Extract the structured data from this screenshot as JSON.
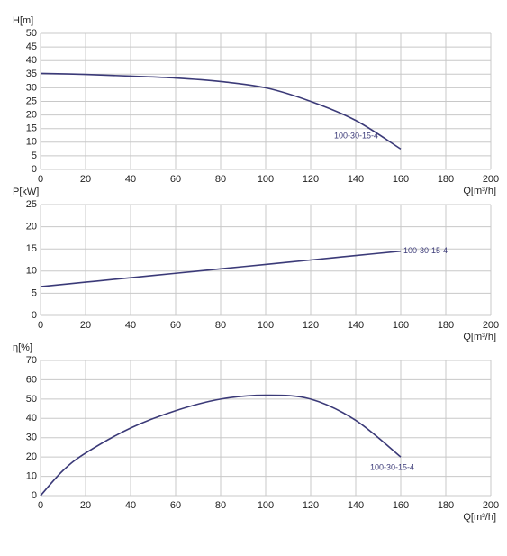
{
  "chart_data": [
    {
      "type": "line",
      "y_label": "H[m]",
      "x_label": "Q[m³/h]",
      "x": [
        0,
        20,
        40,
        60,
        80,
        100,
        120,
        140,
        160
      ],
      "series": [
        {
          "name": "100-30-15-4",
          "color": "#3b3a78",
          "values": [
            35.3,
            34.9,
            34.3,
            33.6,
            32.3,
            30,
            25,
            18,
            7.5
          ]
        }
      ],
      "xlim": [
        0,
        200
      ],
      "xticks": [
        0,
        20,
        40,
        60,
        80,
        100,
        120,
        140,
        160,
        180,
        200
      ],
      "ylim": [
        0,
        50
      ],
      "yticks": [
        0,
        5,
        10,
        15,
        20,
        25,
        30,
        35,
        40,
        45,
        50
      ],
      "grid": true
    },
    {
      "type": "line",
      "y_label": "P[kW]",
      "x_label": "Q[m³/h]",
      "x": [
        0,
        20,
        40,
        60,
        80,
        100,
        120,
        140,
        160
      ],
      "series": [
        {
          "name": "100-30-15-4",
          "color": "#3b3a78",
          "values": [
            6.5,
            7.5,
            8.5,
            9.5,
            10.5,
            11.5,
            12.5,
            13.5,
            14.5
          ]
        }
      ],
      "xlim": [
        0,
        200
      ],
      "xticks": [
        0,
        20,
        40,
        60,
        80,
        100,
        120,
        140,
        160,
        180,
        200
      ],
      "ylim": [
        0,
        25
      ],
      "yticks": [
        0,
        5,
        10,
        15,
        20,
        25
      ],
      "grid": true
    },
    {
      "type": "line",
      "y_label": "η[%]",
      "x_label": "Q[m³/h]",
      "x": [
        0,
        10,
        20,
        40,
        60,
        80,
        100,
        120,
        140,
        160
      ],
      "series": [
        {
          "name": "100-30-15-4",
          "color": "#3b3a78",
          "values": [
            0,
            13,
            22,
            35,
            44,
            50,
            52,
            50,
            39,
            20
          ]
        }
      ],
      "xlim": [
        0,
        200
      ],
      "xticks": [
        0,
        20,
        40,
        60,
        80,
        100,
        120,
        140,
        160,
        180,
        200
      ],
      "ylim": [
        0,
        70
      ],
      "yticks": [
        0,
        10,
        20,
        30,
        40,
        50,
        60,
        70
      ],
      "grid": true
    }
  ]
}
